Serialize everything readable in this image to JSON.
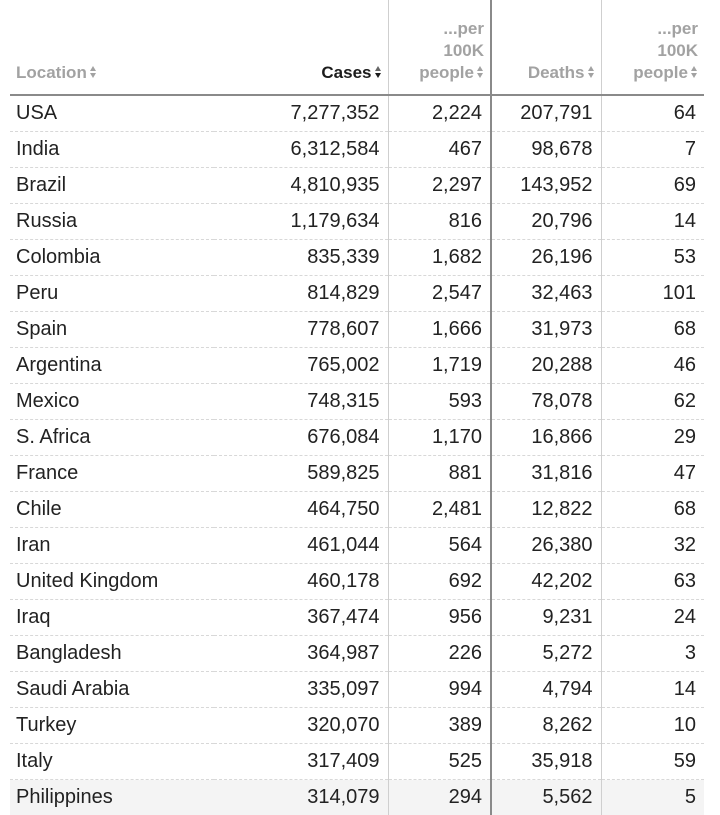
{
  "table": {
    "headers": {
      "location": "Location",
      "cases": "Cases",
      "per100k_cases": "...per 100K people",
      "deaths": "Deaths",
      "per100k_deaths": "...per 100K people"
    },
    "sorted_column": "cases",
    "rows": [
      {
        "location": "USA",
        "cases": "7,277,352",
        "per100k_cases": "2,224",
        "deaths": "207,791",
        "per100k_deaths": "64"
      },
      {
        "location": "India",
        "cases": "6,312,584",
        "per100k_cases": "467",
        "deaths": "98,678",
        "per100k_deaths": "7"
      },
      {
        "location": "Brazil",
        "cases": "4,810,935",
        "per100k_cases": "2,297",
        "deaths": "143,952",
        "per100k_deaths": "69"
      },
      {
        "location": "Russia",
        "cases": "1,179,634",
        "per100k_cases": "816",
        "deaths": "20,796",
        "per100k_deaths": "14"
      },
      {
        "location": "Colombia",
        "cases": "835,339",
        "per100k_cases": "1,682",
        "deaths": "26,196",
        "per100k_deaths": "53"
      },
      {
        "location": "Peru",
        "cases": "814,829",
        "per100k_cases": "2,547",
        "deaths": "32,463",
        "per100k_deaths": "101"
      },
      {
        "location": "Spain",
        "cases": "778,607",
        "per100k_cases": "1,666",
        "deaths": "31,973",
        "per100k_deaths": "68"
      },
      {
        "location": "Argentina",
        "cases": "765,002",
        "per100k_cases": "1,719",
        "deaths": "20,288",
        "per100k_deaths": "46"
      },
      {
        "location": "Mexico",
        "cases": "748,315",
        "per100k_cases": "593",
        "deaths": "78,078",
        "per100k_deaths": "62"
      },
      {
        "location": "S. Africa",
        "cases": "676,084",
        "per100k_cases": "1,170",
        "deaths": "16,866",
        "per100k_deaths": "29"
      },
      {
        "location": "France",
        "cases": "589,825",
        "per100k_cases": "881",
        "deaths": "31,816",
        "per100k_deaths": "47"
      },
      {
        "location": "Chile",
        "cases": "464,750",
        "per100k_cases": "2,481",
        "deaths": "12,822",
        "per100k_deaths": "68"
      },
      {
        "location": "Iran",
        "cases": "461,044",
        "per100k_cases": "564",
        "deaths": "26,380",
        "per100k_deaths": "32"
      },
      {
        "location": "United Kingdom",
        "cases": "460,178",
        "per100k_cases": "692",
        "deaths": "42,202",
        "per100k_deaths": "63"
      },
      {
        "location": "Iraq",
        "cases": "367,474",
        "per100k_cases": "956",
        "deaths": "9,231",
        "per100k_deaths": "24"
      },
      {
        "location": "Bangladesh",
        "cases": "364,987",
        "per100k_cases": "226",
        "deaths": "5,272",
        "per100k_deaths": "3"
      },
      {
        "location": "Saudi Arabia",
        "cases": "335,097",
        "per100k_cases": "994",
        "deaths": "4,794",
        "per100k_deaths": "14"
      },
      {
        "location": "Turkey",
        "cases": "320,070",
        "per100k_cases": "389",
        "deaths": "8,262",
        "per100k_deaths": "10"
      },
      {
        "location": "Italy",
        "cases": "317,409",
        "per100k_cases": "525",
        "deaths": "35,918",
        "per100k_deaths": "59"
      },
      {
        "location": "Philippines",
        "cases": "314,079",
        "per100k_cases": "294",
        "deaths": "5,562",
        "per100k_deaths": "5"
      }
    ]
  },
  "icons": {
    "sort": "sort-arrows-icon"
  },
  "colors": {
    "header_text": "#a2a2a2",
    "header_active_text": "#1c1c1c",
    "body_text": "#222222",
    "divider": "#8a8a8a"
  }
}
